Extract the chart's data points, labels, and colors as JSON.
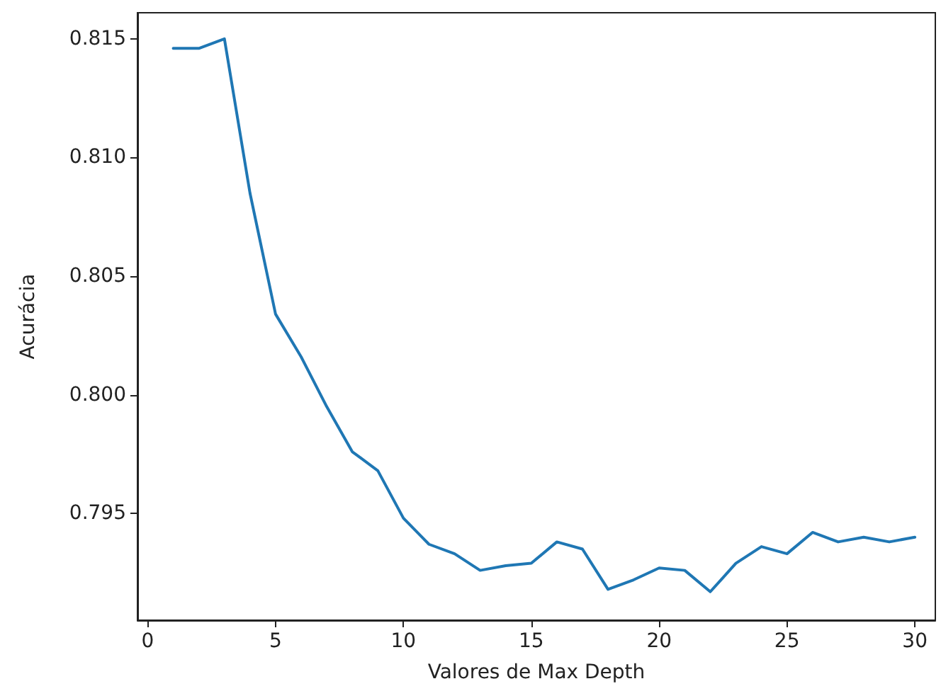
{
  "chart_data": {
    "type": "line",
    "xlabel": "Valores de Max Depth",
    "ylabel": "Acurácia",
    "x": [
      1,
      2,
      3,
      4,
      5,
      6,
      7,
      8,
      9,
      10,
      11,
      12,
      13,
      14,
      15,
      16,
      17,
      18,
      19,
      20,
      21,
      22,
      23,
      24,
      25,
      26,
      27,
      28,
      29,
      30
    ],
    "series": [
      {
        "color": "#1f77b4",
        "values": [
          0.8146,
          0.8146,
          0.815,
          0.8085,
          0.8034,
          0.8016,
          0.7995,
          0.7976,
          0.7968,
          0.7948,
          0.7937,
          0.7933,
          0.7926,
          0.7928,
          0.7929,
          0.7938,
          0.7935,
          0.7918,
          0.7922,
          0.7927,
          0.7926,
          0.7917,
          0.7929,
          0.7936,
          0.7933,
          0.7942,
          0.7938,
          0.794,
          0.7938,
          0.794
        ]
      }
    ],
    "xlim": [
      -0.4,
      30.8
    ],
    "xticks": [
      0,
      5,
      10,
      15,
      20,
      25,
      30
    ],
    "ylim": [
      0.7905,
      0.8161
    ],
    "yticks": [
      0.795,
      {
        "value": 0.8,
        "label": "0.800"
      },
      0.805,
      {
        "value": 0.81,
        "label": "0.810"
      },
      0.815
    ],
    "grid": false,
    "marker": "none",
    "line_style": "solid"
  }
}
